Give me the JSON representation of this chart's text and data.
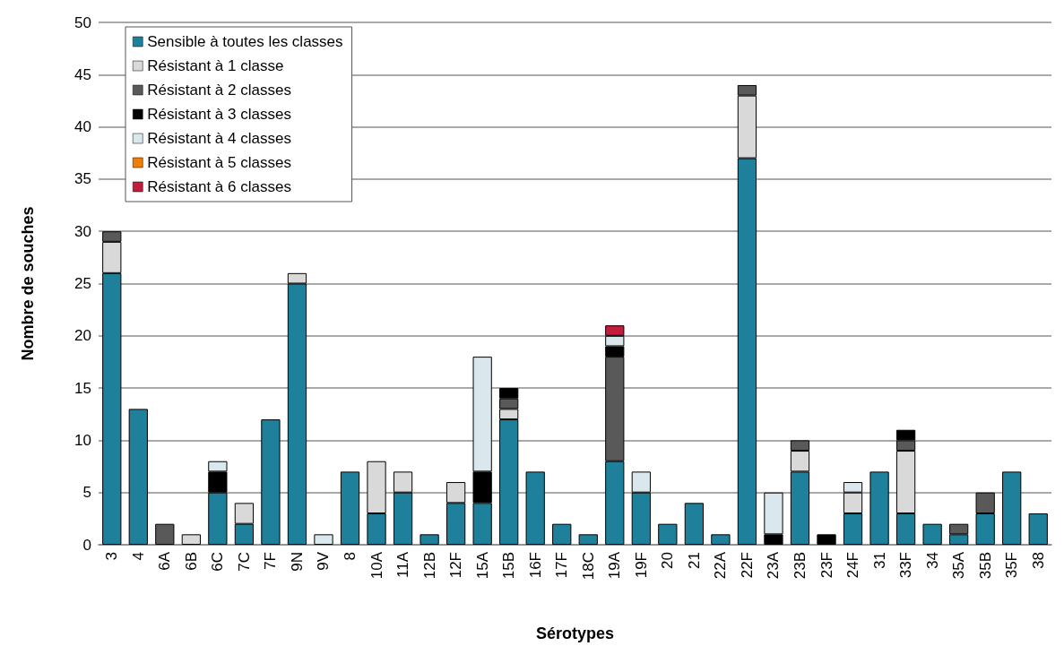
{
  "chart_data": {
    "type": "bar",
    "stacked": true,
    "xlabel": "Sérotypes",
    "ylabel": "Nombre de souches",
    "categories": [
      "3",
      "4",
      "6A",
      "6B",
      "6C",
      "7C",
      "7F",
      "9N",
      "9V",
      "8",
      "10A",
      "11A",
      "12B",
      "12F",
      "15A",
      "15B",
      "16F",
      "17F",
      "18C",
      "19A",
      "19F",
      "20",
      "21",
      "22A",
      "22F",
      "23A",
      "23B",
      "23F",
      "24F",
      "31",
      "33F",
      "34",
      "35A",
      "35B",
      "35F",
      "38"
    ],
    "series": [
      {
        "name": "Sensible à toutes les classes",
        "color": "#1f809b",
        "values": [
          26,
          13,
          0,
          0,
          5,
          2,
          12,
          25,
          0,
          7,
          3,
          5,
          1,
          4,
          4,
          12,
          7,
          2,
          1,
          8,
          5,
          2,
          4,
          1,
          37,
          0,
          7,
          0,
          3,
          7,
          3,
          2,
          1,
          3,
          7,
          3
        ]
      },
      {
        "name": "Résistant à 1 classe",
        "color": "#d9d9d9",
        "values": [
          3,
          0,
          0,
          1,
          0,
          2,
          0,
          1,
          0,
          0,
          5,
          2,
          0,
          2,
          0,
          1,
          0,
          0,
          0,
          0,
          0,
          0,
          0,
          0,
          6,
          0,
          2,
          0,
          2,
          0,
          6,
          0,
          0,
          0,
          0,
          0
        ]
      },
      {
        "name": "Résistant à 2 classes",
        "color": "#595959",
        "values": [
          1,
          0,
          2,
          0,
          0,
          0,
          0,
          0,
          0,
          0,
          0,
          0,
          0,
          0,
          0,
          1,
          0,
          0,
          0,
          10,
          0,
          0,
          0,
          0,
          1,
          0,
          1,
          0,
          0,
          0,
          1,
          0,
          1,
          2,
          0,
          0
        ]
      },
      {
        "name": "Résistant à 3 classes",
        "color": "#000000",
        "values": [
          0,
          0,
          0,
          0,
          2,
          0,
          0,
          0,
          0,
          0,
          0,
          0,
          0,
          0,
          3,
          1,
          0,
          0,
          0,
          1,
          0,
          0,
          0,
          0,
          0,
          1,
          0,
          1,
          0,
          0,
          1,
          0,
          0,
          0,
          0,
          0
        ]
      },
      {
        "name": "Résistant à 4 classes",
        "color": "#dae8ee",
        "values": [
          0,
          0,
          0,
          0,
          1,
          0,
          0,
          0,
          1,
          0,
          0,
          0,
          0,
          0,
          11,
          0,
          0,
          0,
          0,
          1,
          2,
          0,
          0,
          0,
          0,
          4,
          0,
          0,
          1,
          0,
          0,
          0,
          0,
          0,
          0,
          0
        ]
      },
      {
        "name": "Résistant à 5 classes",
        "color": "#f07f0a",
        "values": [
          0,
          0,
          0,
          0,
          0,
          0,
          0,
          0,
          0,
          0,
          0,
          0,
          0,
          0,
          0,
          0,
          0,
          0,
          0,
          0,
          0,
          0,
          0,
          0,
          0,
          0,
          0,
          0,
          0,
          0,
          0,
          0,
          0,
          0,
          0,
          0
        ]
      },
      {
        "name": "Résistant à 6 classes",
        "color": "#c01e3c",
        "values": [
          0,
          0,
          0,
          0,
          0,
          0,
          0,
          0,
          0,
          0,
          0,
          0,
          0,
          0,
          0,
          0,
          0,
          0,
          0,
          1,
          0,
          0,
          0,
          0,
          0,
          0,
          0,
          0,
          0,
          0,
          0,
          0,
          0,
          0,
          0,
          0
        ]
      }
    ],
    "ylim": [
      0,
      50
    ],
    "yticks": [
      0,
      5,
      10,
      15,
      20,
      25,
      30,
      35,
      40,
      45,
      50
    ],
    "grid": "y",
    "legend": "top left"
  }
}
